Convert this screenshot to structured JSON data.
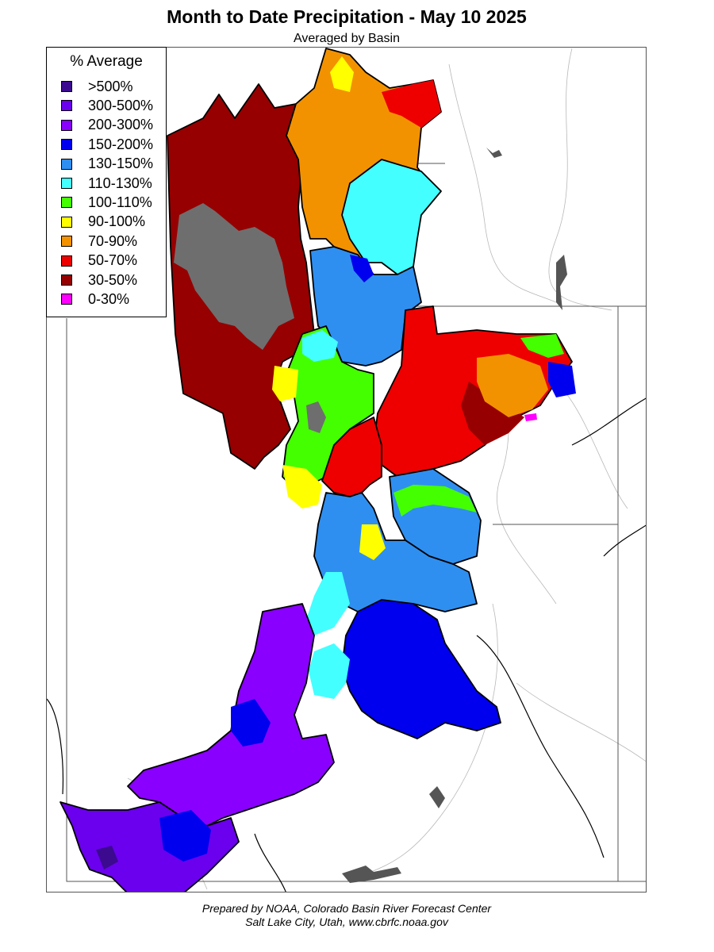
{
  "title": "Month to Date Precipitation - May 10 2025",
  "subtitle": "Averaged by Basin",
  "legend": {
    "title": "% Average",
    "items": [
      {
        "label": ">500%",
        "color": "#3b0a8f"
      },
      {
        "label": "300-500%",
        "color": "#6a00ee"
      },
      {
        "label": "200-300%",
        "color": "#8a00ff"
      },
      {
        "label": "150-200%",
        "color": "#0000ee"
      },
      {
        "label": "130-150%",
        "color": "#2f8ff0"
      },
      {
        "label": "110-130%",
        "color": "#44ffff"
      },
      {
        "label": "100-110%",
        "color": "#44ff00"
      },
      {
        "label": "90-100%",
        "color": "#ffff00"
      },
      {
        "label": "70-90%",
        "color": "#f39200"
      },
      {
        "label": "50-70%",
        "color": "#ee0000"
      },
      {
        "label": "30-50%",
        "color": "#960000"
      },
      {
        "label": "0-30%",
        "color": "#ff00ff"
      }
    ]
  },
  "footer": {
    "line1": "Prepared by NOAA, Colorado Basin River Forecast Center",
    "line2": "Salt Lake City, Utah, www.cbrfc.noaa.gov"
  }
}
